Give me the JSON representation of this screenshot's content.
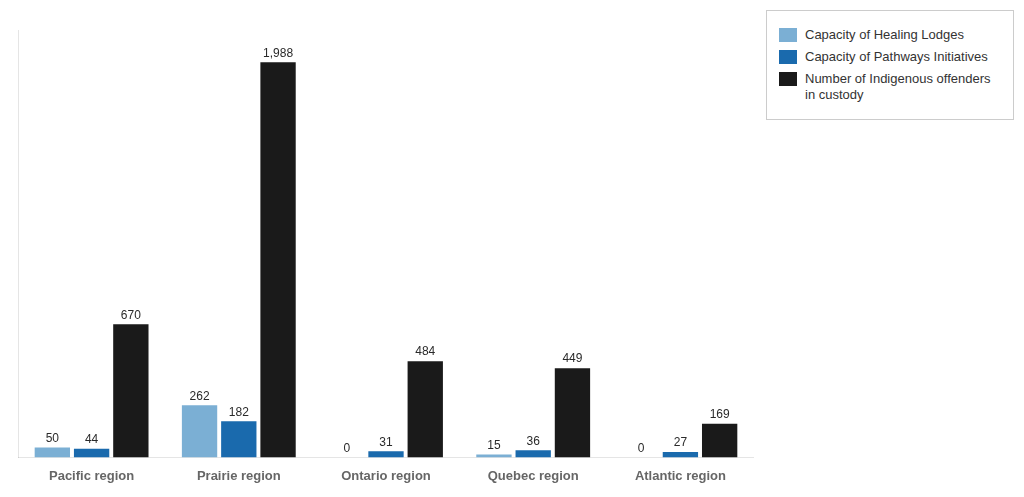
{
  "chart_data": {
    "type": "bar",
    "categories": [
      "Pacific region",
      "Prairie region",
      "Ontario region",
      "Quebec region",
      "Atlantic region"
    ],
    "series": [
      {
        "name": "Capacity of Healing Lodges",
        "color": "#7bafd4",
        "values": [
          50,
          262,
          0,
          15,
          0
        ]
      },
      {
        "name": "Capacity of Pathways Initiatives",
        "color": "#1a6aad",
        "values": [
          44,
          182,
          31,
          36,
          27
        ]
      },
      {
        "name": "Number of Indigenous offenders\nin custody",
        "color": "#1a1a1a",
        "values": [
          670,
          1988,
          484,
          449,
          169
        ],
        "value_labels": [
          "670",
          "1,988",
          "484",
          "449",
          "169"
        ]
      }
    ],
    "ylim": [
      0,
      2150
    ],
    "grid": false,
    "legend": "upper right",
    "data_labels": true,
    "tick_labels": "x"
  }
}
